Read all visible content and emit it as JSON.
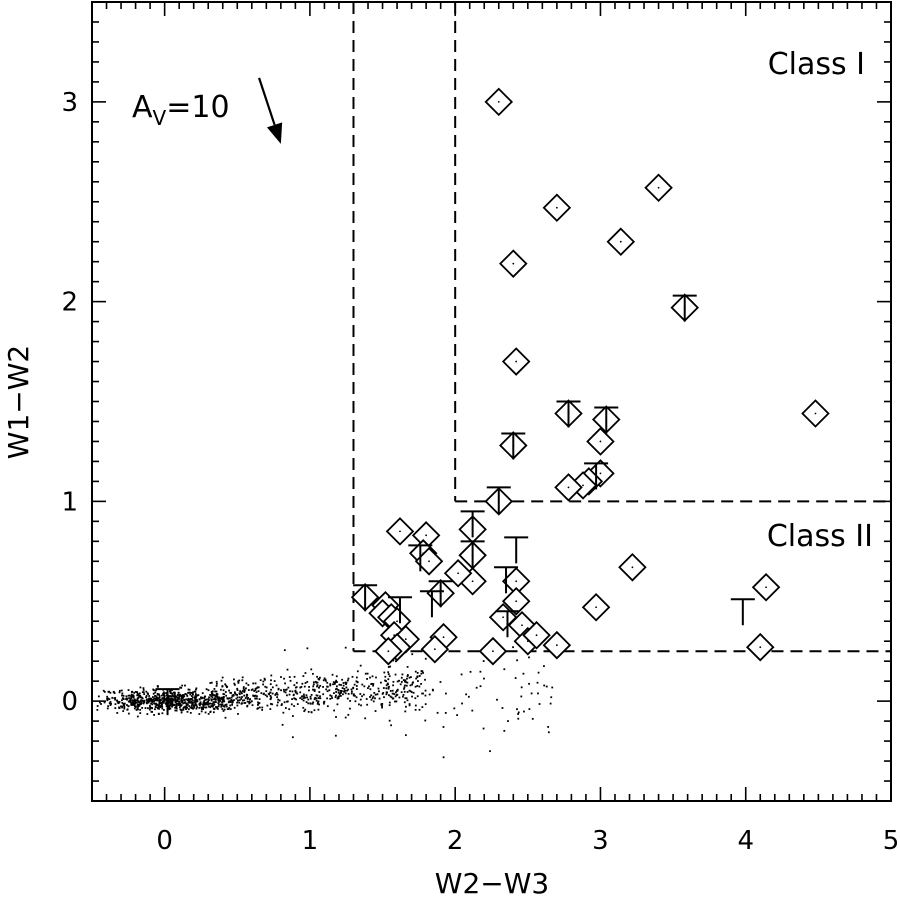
{
  "chart_data": {
    "type": "scatter",
    "title": "",
    "xlabel": "W2−W3",
    "ylabel": "W1−W2",
    "xlim": [
      -0.5,
      5
    ],
    "ylim": [
      -0.5,
      3.5
    ],
    "xticks": [
      0,
      1,
      2,
      3,
      4,
      5
    ],
    "xtick_labels": [
      "0",
      "1",
      "2",
      "3",
      "4",
      "5"
    ],
    "yticks": [
      0,
      1,
      2,
      3
    ],
    "ytick_labels": [
      "0",
      "1",
      "2",
      "3"
    ],
    "x_minor_step": 0.1,
    "y_minor_step": 0.1,
    "grid": false,
    "annotations": {
      "class1": "Class I",
      "class2": "Class II",
      "extinction_label": "A",
      "extinction_sub": "V",
      "extinction_value": "=10",
      "extinction_vector": {
        "from": [
          0.65,
          3.12
        ],
        "to": [
          0.8,
          2.79
        ]
      }
    },
    "boundaries": [
      {
        "name": "class-ii-left",
        "points": [
          [
            1.3,
            3.5
          ],
          [
            1.3,
            0.25
          ]
        ]
      },
      {
        "name": "class-ii-bottom",
        "points": [
          [
            1.3,
            0.25
          ],
          [
            5.0,
            0.25
          ]
        ]
      },
      {
        "name": "class-i-left",
        "points": [
          [
            2.0,
            3.5
          ],
          [
            2.0,
            1.0
          ]
        ]
      },
      {
        "name": "class-i-bottom",
        "points": [
          [
            2.0,
            1.0
          ],
          [
            5.0,
            1.0
          ]
        ]
      }
    ],
    "series": [
      {
        "kind": "diamond",
        "values": [
          [
            2.3,
            3.0
          ],
          [
            3.4,
            2.57
          ],
          [
            2.7,
            2.47
          ],
          [
            3.14,
            2.3
          ],
          [
            2.4,
            2.19
          ],
          [
            3.58,
            1.97
          ],
          [
            2.42,
            1.7
          ],
          [
            4.48,
            1.44
          ],
          [
            2.78,
            1.44
          ],
          [
            3.04,
            1.41
          ],
          [
            2.4,
            1.28
          ],
          [
            3.0,
            1.3
          ],
          [
            3.0,
            1.14
          ],
          [
            2.92,
            1.1
          ],
          [
            2.88,
            1.08
          ],
          [
            2.78,
            1.07
          ],
          [
            2.3,
            1.0
          ],
          [
            2.12,
            0.86
          ],
          [
            2.12,
            0.73
          ],
          [
            2.12,
            0.6
          ],
          [
            2.02,
            0.64
          ],
          [
            1.62,
            0.85
          ],
          [
            1.8,
            0.83
          ],
          [
            1.78,
            0.74
          ],
          [
            1.82,
            0.7
          ],
          [
            1.9,
            0.54
          ],
          [
            1.38,
            0.52
          ],
          [
            1.52,
            0.48
          ],
          [
            1.5,
            0.44
          ],
          [
            1.56,
            0.42
          ],
          [
            1.6,
            0.4
          ],
          [
            1.58,
            0.33
          ],
          [
            1.66,
            0.31
          ],
          [
            1.6,
            0.27
          ],
          [
            1.54,
            0.25
          ],
          [
            1.92,
            0.32
          ],
          [
            1.86,
            0.26
          ],
          [
            2.26,
            0.25
          ],
          [
            2.33,
            0.42
          ],
          [
            2.42,
            0.6
          ],
          [
            2.42,
            0.5
          ],
          [
            2.46,
            0.38
          ],
          [
            2.5,
            0.3
          ],
          [
            2.56,
            0.33
          ],
          [
            2.7,
            0.28
          ],
          [
            2.97,
            0.47
          ],
          [
            3.22,
            0.67
          ],
          [
            4.14,
            0.57
          ],
          [
            4.1,
            0.27
          ]
        ]
      },
      {
        "kind": "upper-limit",
        "values": [
          [
            2.3,
            1.07
          ],
          [
            2.12,
            0.95
          ],
          [
            2.12,
            0.8
          ],
          [
            2.4,
            1.34
          ],
          [
            2.78,
            1.5
          ],
          [
            3.04,
            1.47
          ],
          [
            3.58,
            2.03
          ],
          [
            2.97,
            1.19
          ],
          [
            1.9,
            0.6
          ],
          [
            1.38,
            0.58
          ],
          [
            1.76,
            0.78
          ],
          [
            1.62,
            0.52
          ],
          [
            1.84,
            0.55
          ],
          [
            2.35,
            0.67
          ],
          [
            2.42,
            0.82
          ],
          [
            2.36,
            0.45
          ],
          [
            3.98,
            0.51
          ],
          [
            0.02,
            0.06
          ]
        ]
      }
    ]
  }
}
